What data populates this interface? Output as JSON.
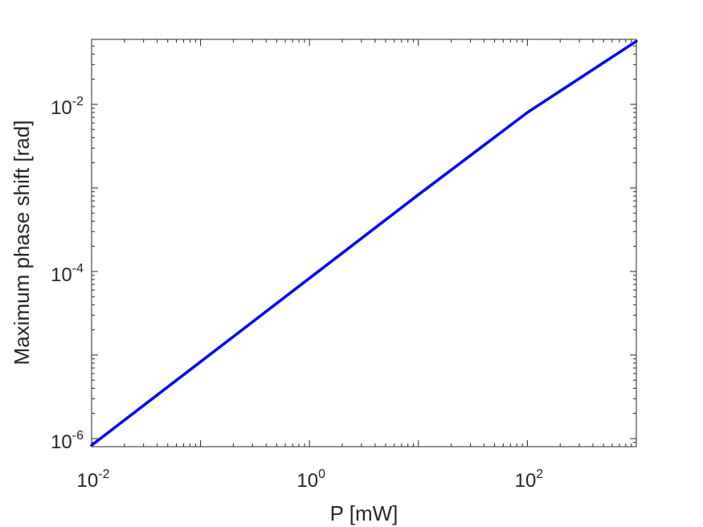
{
  "chart_data": {
    "type": "line",
    "xlabel": "P [mW]",
    "ylabel": "Maximum phase shift [rad]",
    "xscale": "log",
    "yscale": "log",
    "xlim": [
      0.01,
      1000
    ],
    "ylim": [
      8e-07,
      0.06
    ],
    "x_ticks": [
      {
        "value": 0.01,
        "base": "10",
        "exp": "-2"
      },
      {
        "value": 1,
        "base": "10",
        "exp": "0"
      },
      {
        "value": 100,
        "base": "10",
        "exp": "2"
      }
    ],
    "y_ticks": [
      {
        "value": 1e-06,
        "base": "10",
        "exp": "-6"
      },
      {
        "value": 0.0001,
        "base": "10",
        "exp": "-4"
      },
      {
        "value": 0.01,
        "base": "10",
        "exp": "-2"
      }
    ],
    "grid": false,
    "box": true,
    "series": [
      {
        "color": "#0000ff",
        "x": [
          0.01,
          0.1,
          1,
          10,
          100,
          1000
        ],
        "y": [
          8.3e-07,
          8.3e-06,
          8.3e-05,
          0.00083,
          0.008,
          0.057
        ]
      }
    ]
  }
}
